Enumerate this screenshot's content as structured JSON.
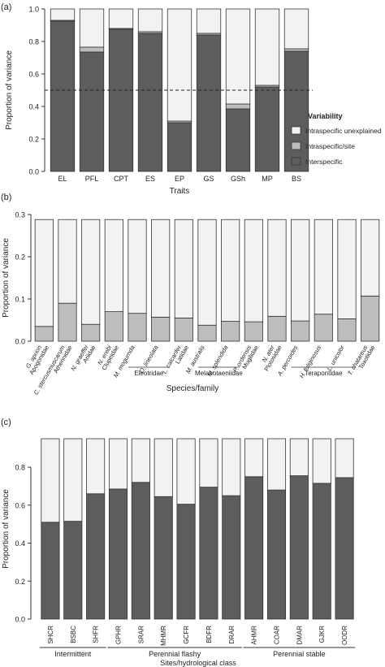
{
  "chart_data": [
    {
      "panel_label": "(a)",
      "type": "bar",
      "stacked": true,
      "xlabel": "Traits",
      "ylabel": "Proportion of variance",
      "ylim": [
        0,
        1.0
      ],
      "yticks": [
        "0.0",
        "0.2",
        "0.4",
        "0.6",
        "0.8",
        "1.0"
      ],
      "categories": [
        "EL",
        "PFL",
        "CPT",
        "ES",
        "EP",
        "GS",
        "GSh",
        "MP",
        "BS"
      ],
      "series": [
        {
          "name": "Interspecific",
          "color": "#5d5d5d",
          "values": [
            0.925,
            0.735,
            0.875,
            0.85,
            0.3,
            0.84,
            0.385,
            0.52,
            0.74
          ]
        },
        {
          "name": "Intraspecific/site",
          "color": "#bdbdbd",
          "values": [
            0.005,
            0.03,
            0.005,
            0.01,
            0.01,
            0.01,
            0.03,
            0.01,
            0.015
          ]
        },
        {
          "name": "Intraspecific unexplained",
          "color": "#f2f2f2",
          "values": [
            0.07,
            0.235,
            0.12,
            0.14,
            0.69,
            0.15,
            0.585,
            0.47,
            0.245
          ]
        }
      ],
      "reference_line": 0.5,
      "legend": {
        "title": "Variability",
        "position": "right",
        "items": [
          "Intraspecific unexplained",
          "Intraspecific/site",
          "Interspecific"
        ]
      }
    },
    {
      "panel_label": "(b)",
      "type": "bar",
      "stacked": true,
      "xlabel": "Species/family",
      "ylabel": "Proportion of variance",
      "ylim": [
        0,
        0.3
      ],
      "yticks": [
        "0.0",
        "0.1",
        "0.2",
        "0.3"
      ],
      "categories": [
        "G. aprion",
        "C. stercusmuscarum",
        "N. graeffei",
        "N. erebi",
        "M. mogurnda",
        "O. lineolata",
        "L. calcarifer",
        "M. australis",
        "M. splendida",
        "P. ordensis",
        "N. ater",
        "A. percoides",
        "H. fuliginosus",
        "L. unicolor",
        "T. chatareus"
      ],
      "families": [
        "Apogonidae",
        "Atherinidae",
        "Ariidae",
        "Clupeidae",
        "",
        "",
        "Latidae",
        "",
        "",
        "Mugilidae",
        "Plotosidae",
        "",
        "",
        "",
        "Toxotidae"
      ],
      "family_groups": [
        {
          "name": "Eleotridae",
          "from": 4,
          "to": 5
        },
        {
          "name": "Melanotaeniidae",
          "from": 7,
          "to": 8
        },
        {
          "name": "Terapontidae",
          "from": 11,
          "to": 13
        }
      ],
      "series": [
        {
          "color": "#bdbdbd",
          "values": [
            0.035,
            0.09,
            0.04,
            0.07,
            0.066,
            0.057,
            0.055,
            0.038,
            0.047,
            0.046,
            0.059,
            0.048,
            0.064,
            0.053,
            0.107
          ]
        },
        {
          "color": "#f2f2f2",
          "values": [
            0.253,
            0.198,
            0.248,
            0.218,
            0.222,
            0.231,
            0.233,
            0.25,
            0.241,
            0.242,
            0.229,
            0.24,
            0.224,
            0.235,
            0.181
          ]
        }
      ]
    },
    {
      "panel_label": "(c)",
      "type": "bar",
      "stacked": true,
      "xlabel": "Sites/hydrological class",
      "ylabel": "Proportion of variance",
      "ylim": [
        0,
        0.95
      ],
      "yticks": [
        "0.0",
        "0.2",
        "0.4",
        "0.6",
        "0.8"
      ],
      "categories": [
        "SHCR",
        "BSBC",
        "SHFR",
        "GPHR",
        "SRAR",
        "MHMR",
        "GCFR",
        "BDFR",
        "DRAR",
        "AHMR",
        "COAR",
        "DMAR",
        "GJKR",
        "OODR"
      ],
      "class_groups": [
        {
          "name": "Intermittent",
          "from": 0,
          "to": 2
        },
        {
          "name": "Perennial flashy",
          "from": 3,
          "to": 8
        },
        {
          "name": "Perennial stable",
          "from": 9,
          "to": 13
        }
      ],
      "series": [
        {
          "color": "#5d5d5d",
          "values": [
            0.51,
            0.515,
            0.66,
            0.685,
            0.72,
            0.645,
            0.605,
            0.695,
            0.65,
            0.75,
            0.68,
            0.755,
            0.715,
            0.745
          ]
        },
        {
          "color": "#f2f2f2",
          "values": [
            0.44,
            0.435,
            0.29,
            0.265,
            0.23,
            0.305,
            0.345,
            0.255,
            0.3,
            0.2,
            0.27,
            0.195,
            0.235,
            0.205
          ]
        }
      ]
    }
  ]
}
